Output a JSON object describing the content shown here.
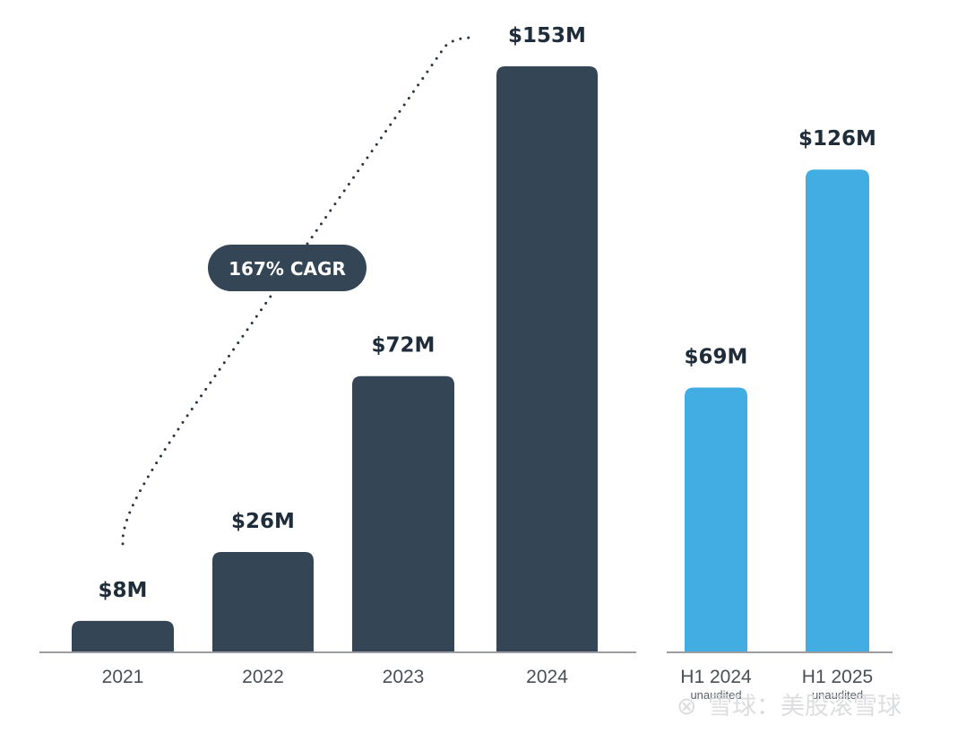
{
  "chart_data": {
    "type": "bar",
    "title": "",
    "xlabel": "",
    "ylabel": "",
    "unit": "$M",
    "ylim": [
      0,
      153
    ],
    "grid": false,
    "groups": [
      {
        "name": "annual",
        "color": "#344556",
        "categories": [
          "2021",
          "2022",
          "2023",
          "2024"
        ],
        "values": [
          8,
          26,
          72,
          153
        ],
        "value_labels": [
          "$8M",
          "$26M",
          "$72M",
          "$153M"
        ],
        "sublabels": [
          "",
          "",
          "",
          ""
        ]
      },
      {
        "name": "half-year",
        "color": "#41ade2",
        "categories": [
          "H1 2024",
          "H1 2025"
        ],
        "values": [
          69,
          126
        ],
        "value_labels": [
          "$69M",
          "$126M"
        ],
        "sublabels": [
          "unaudited",
          "unaudited"
        ]
      }
    ],
    "annotations": [
      {
        "type": "badge",
        "text": "167% CAGR",
        "color": "#344556"
      },
      {
        "type": "dotted-trend",
        "from_category": "2021",
        "to_category": "2024"
      }
    ]
  },
  "watermark": {
    "text": "雪球：美股滚雪球"
  }
}
